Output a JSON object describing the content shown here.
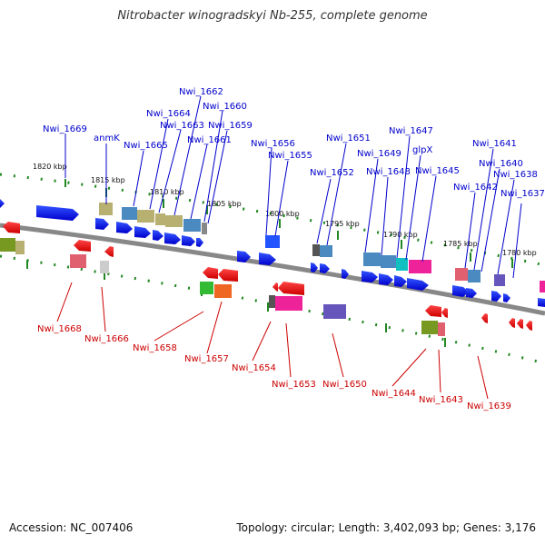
{
  "title": "Nitrobacter winogradskyi Nb-255, complete genome",
  "footer": {
    "accession": "Accession: NC_007406",
    "summary": "Topology: circular; Length: 3,402,093 bp; Genes: 3,176"
  },
  "colors": {
    "forward_label": "#0000cc",
    "reverse_label": "#cc0000",
    "tick": "#228822",
    "backbone": "#888888"
  },
  "kbp_marks": [
    "1820 kbp",
    "1815 kbp",
    "1810 kbp",
    "1805 kbp",
    "1800 kbp",
    "1795 kbp",
    "1790 kbp",
    "1785 kbp",
    "1780 kbp"
  ],
  "forward_genes": [
    "Nwi_1669",
    "anmK",
    "Nwi_1665",
    "Nwi_1664",
    "Nwi_1663",
    "Nwi_1662",
    "Nwi_1661",
    "Nwi_1660",
    "Nwi_1659",
    "Nwi_1656",
    "Nwi_1655",
    "Nwi_1652",
    "Nwi_1651",
    "Nwi_1649",
    "Nwi_1648",
    "Nwi_1647",
    "glpX",
    "Nwi_1645",
    "Nwi_1642",
    "Nwi_1641",
    "Nwi_1640",
    "Nwi_1638",
    "Nwi_1637"
  ],
  "reverse_genes": [
    "Nwi_1668",
    "Nwi_1666",
    "Nwi_1658",
    "Nwi_1657",
    "Nwi_1654",
    "Nwi_1653",
    "Nwi_1650",
    "Nwi_1644",
    "Nwi_1643",
    "Nwi_1639"
  ]
}
